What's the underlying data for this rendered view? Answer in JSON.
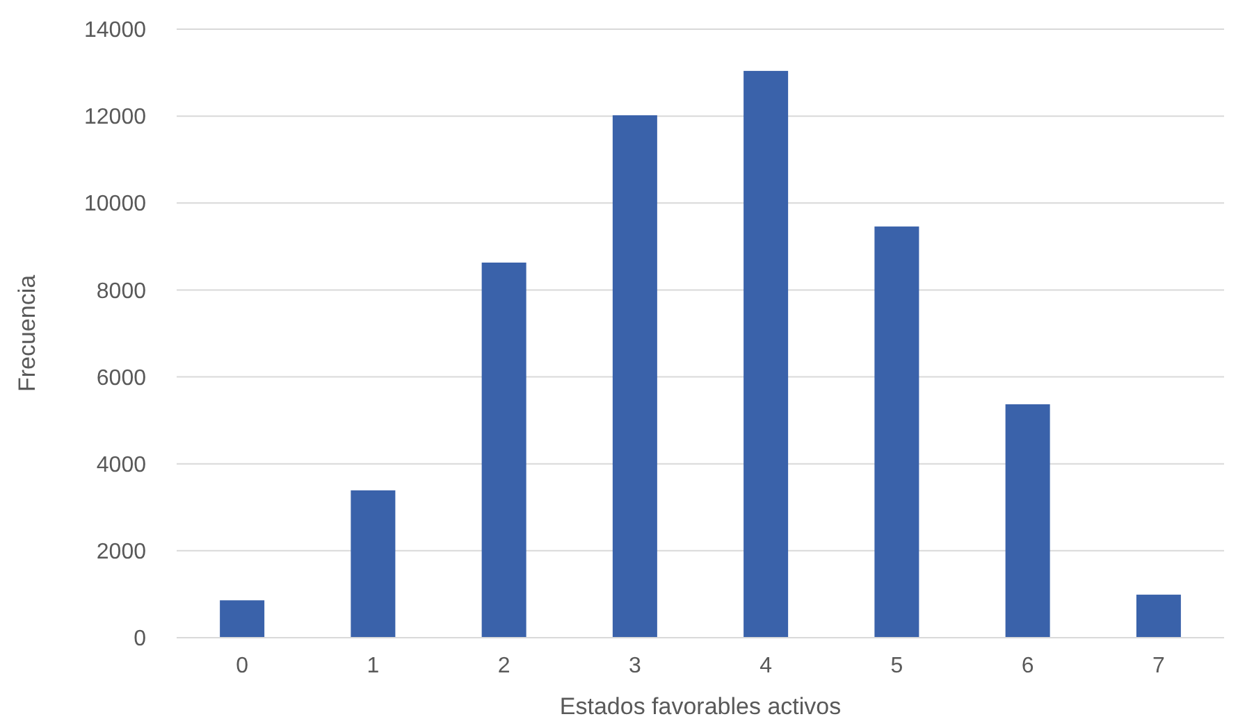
{
  "chart_data": {
    "type": "bar",
    "xlabel": "Estados favorables activos",
    "ylabel": "Frecuencia",
    "categories": [
      "0",
      "1",
      "2",
      "3",
      "4",
      "5",
      "6",
      "7"
    ],
    "values": [
      860,
      3390,
      8630,
      12020,
      13040,
      9460,
      5370,
      990
    ],
    "color": "#3a62aa",
    "ylim": [
      0,
      14000
    ],
    "yticks": [
      0,
      2000,
      4000,
      6000,
      8000,
      10000,
      12000,
      14000
    ],
    "grid": "y"
  }
}
